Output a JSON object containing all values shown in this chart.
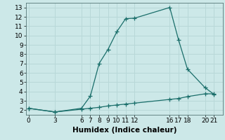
{
  "title": "",
  "xlabel": "Humidex (Indice chaleur)",
  "ylabel": "",
  "background_color": "#cce8e8",
  "grid_color": "#b8d8d8",
  "line_color": "#1a6e6a",
  "upper_x": [
    0,
    3,
    6,
    7,
    8,
    9,
    10,
    11,
    12,
    16,
    17,
    18,
    20,
    21
  ],
  "upper_y": [
    2.2,
    1.8,
    2.2,
    3.5,
    7.0,
    8.5,
    10.4,
    11.8,
    11.85,
    13.0,
    9.5,
    6.4,
    4.4,
    3.7
  ],
  "lower_x": [
    0,
    3,
    6,
    7,
    8,
    9,
    10,
    11,
    12,
    16,
    17,
    18,
    20,
    21
  ],
  "lower_y": [
    2.2,
    1.8,
    2.1,
    2.2,
    2.3,
    2.45,
    2.55,
    2.65,
    2.75,
    3.15,
    3.25,
    3.45,
    3.75,
    3.75
  ],
  "xlim": [
    -0.3,
    22
  ],
  "ylim": [
    1.5,
    13.5
  ],
  "xticks": [
    0,
    3,
    6,
    7,
    8,
    9,
    10,
    11,
    12,
    16,
    17,
    18,
    20,
    21
  ],
  "yticks": [
    2,
    3,
    4,
    5,
    6,
    7,
    8,
    9,
    10,
    11,
    12,
    13
  ],
  "marker": "+",
  "markersize": 4,
  "linewidth": 0.9,
  "tick_fontsize": 6.5,
  "label_fontsize": 7.5
}
